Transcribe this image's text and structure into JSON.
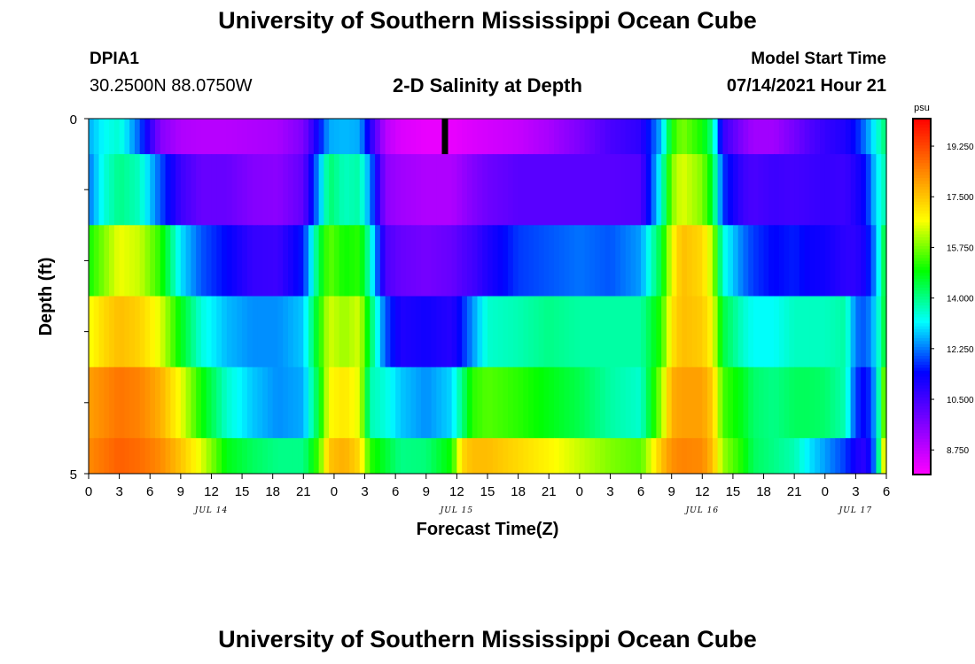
{
  "header": {
    "title": "University of Southern Mississippi Ocean Cube",
    "station": "DPIA1",
    "coordinates": "30.2500N  88.0750W",
    "model_start_label": "Model Start Time",
    "model_start_value": "07/14/2021 Hour 21"
  },
  "footer": {
    "title": "University of Southern Mississippi Ocean Cube"
  },
  "chart_data": {
    "type": "heatmap",
    "title": "2-D Salinity at Depth",
    "xlabel": "Forecast Time(Z)",
    "ylabel": "Depth (ft)",
    "ylim": [
      0,
      5
    ],
    "y_tick_labels": [
      "0",
      "5"
    ],
    "x_range_hours": [
      0,
      78
    ],
    "x_tick_labels": [
      "0",
      "3",
      "6",
      "9",
      "12",
      "15",
      "18",
      "21",
      "0",
      "3",
      "6",
      "9",
      "12",
      "15",
      "18",
      "21",
      "0",
      "3",
      "6",
      "9",
      "12",
      "15",
      "18",
      "21",
      "0",
      "3",
      "6"
    ],
    "date_labels": [
      {
        "label": "JUL 14",
        "hour": 12
      },
      {
        "label": "JUL 15",
        "hour": 36
      },
      {
        "label": "JUL 16",
        "hour": 60
      },
      {
        "label": "JUL 17",
        "hour": 75
      }
    ],
    "current_time_marker_hour": 34.8,
    "colorbar": {
      "unit": "psu",
      "range": [
        7.9,
        20.2
      ],
      "tick_labels": [
        "19.250",
        "17.500",
        "15.750",
        "14.000",
        "12.250",
        "10.500",
        "8.750"
      ],
      "tick_values": [
        19.25,
        17.5,
        15.75,
        14.0,
        12.25,
        10.5,
        8.75
      ],
      "color_scale": [
        "#ff00ff",
        "#8000ff",
        "#0000ff",
        "#00ffff",
        "#00ff00",
        "#ffff00",
        "#ff8000",
        "#ff0000"
      ]
    },
    "depth_layers": [
      "0-0.5 ft",
      "0.5-1.5 ft",
      "1.5-2.5 ft",
      "2.5-3.5 ft",
      "3.5-4.5 ft",
      "4.5-5 ft"
    ],
    "knot_hours": [
      0,
      1.5,
      3,
      5,
      7,
      9,
      11,
      13.5,
      16,
      18.5,
      21,
      22.5,
      23.5,
      25,
      26.5,
      27.5,
      29,
      30.5,
      33,
      35.5,
      36.5,
      37.5,
      39,
      42,
      45,
      48,
      51,
      54,
      56,
      57,
      58,
      60,
      61,
      62,
      64,
      65,
      67,
      69,
      70.5,
      72,
      74,
      75,
      76,
      77,
      77.7
    ],
    "salinity": [
      [
        12.6,
        13.2,
        13.5,
        12.0,
        9.6,
        9.0,
        8.9,
        8.9,
        9.0,
        9.1,
        9.7,
        11.4,
        12.6,
        12.7,
        12.6,
        11.0,
        8.9,
        8.4,
        8.2,
        8.2,
        8.3,
        8.4,
        8.5,
        8.7,
        9.1,
        9.7,
        10.4,
        10.8,
        12.7,
        15.0,
        15.8,
        15.0,
        14.0,
        10.7,
        9.6,
        9.2,
        9.2,
        9.8,
        10.3,
        10.7,
        11.0,
        11.5,
        12.3,
        13.3,
        14.0
      ],
      [
        12.2,
        13.4,
        14.0,
        13.6,
        12.0,
        10.6,
        10.0,
        10.0,
        9.6,
        9.5,
        10.1,
        12.5,
        14.2,
        13.6,
        13.8,
        12.4,
        9.5,
        9.2,
        9.0,
        9.0,
        9.3,
        9.6,
        9.9,
        10.2,
        10.2,
        10.2,
        10.2,
        10.3,
        13.4,
        15.8,
        16.5,
        15.8,
        14.6,
        11.8,
        10.6,
        10.4,
        10.6,
        10.5,
        10.6,
        10.7,
        10.6,
        11.0,
        11.5,
        13.0,
        13.6
      ],
      [
        15.0,
        15.8,
        16.6,
        16.3,
        15.2,
        13.0,
        12.0,
        11.4,
        10.7,
        10.6,
        11.6,
        14.4,
        15.6,
        15.0,
        15.2,
        13.6,
        10.4,
        10.0,
        9.8,
        10.0,
        10.3,
        10.5,
        11.0,
        11.8,
        12.0,
        12.2,
        12.0,
        12.5,
        14.6,
        16.6,
        17.6,
        17.2,
        16.2,
        13.4,
        12.2,
        11.8,
        11.4,
        11.6,
        11.3,
        11.2,
        10.8,
        10.8,
        11.2,
        12.5,
        14.3
      ],
      [
        16.6,
        17.2,
        17.6,
        17.3,
        16.5,
        14.8,
        13.4,
        12.7,
        12.4,
        12.4,
        12.8,
        15.0,
        16.4,
        16.0,
        16.4,
        14.4,
        12.0,
        11.0,
        11.2,
        10.9,
        11.6,
        12.4,
        13.5,
        13.7,
        14.0,
        13.8,
        13.8,
        13.8,
        15.2,
        17.0,
        17.6,
        17.4,
        16.7,
        14.5,
        13.5,
        13.2,
        13.2,
        13.6,
        13.6,
        13.6,
        13.8,
        12.2,
        12.0,
        13.0,
        14.4
      ],
      [
        18.0,
        18.3,
        18.6,
        18.4,
        17.8,
        16.6,
        15.0,
        13.5,
        12.8,
        12.4,
        12.6,
        14.6,
        16.7,
        17.0,
        16.5,
        13.7,
        13.4,
        12.8,
        12.4,
        12.9,
        14.0,
        15.2,
        15.5,
        15.2,
        14.8,
        14.4,
        13.8,
        13.5,
        16.0,
        17.8,
        18.0,
        18.0,
        17.4,
        15.4,
        14.7,
        14.2,
        14.0,
        14.3,
        14.3,
        14.2,
        13.7,
        11.8,
        11.3,
        12.7,
        15.5
      ],
      [
        18.3,
        18.6,
        18.9,
        18.7,
        18.3,
        17.5,
        16.5,
        14.8,
        14.3,
        14.0,
        14.0,
        15.4,
        17.5,
        17.8,
        17.2,
        15.2,
        14.6,
        14.0,
        14.1,
        15.0,
        17.2,
        17.6,
        17.6,
        17.2,
        16.8,
        16.3,
        15.8,
        15.5,
        17.5,
        18.2,
        18.4,
        18.3,
        17.6,
        16.0,
        15.0,
        14.3,
        14.0,
        13.7,
        13.0,
        12.5,
        11.8,
        11.1,
        10.8,
        12.5,
        16.5
      ]
    ]
  }
}
